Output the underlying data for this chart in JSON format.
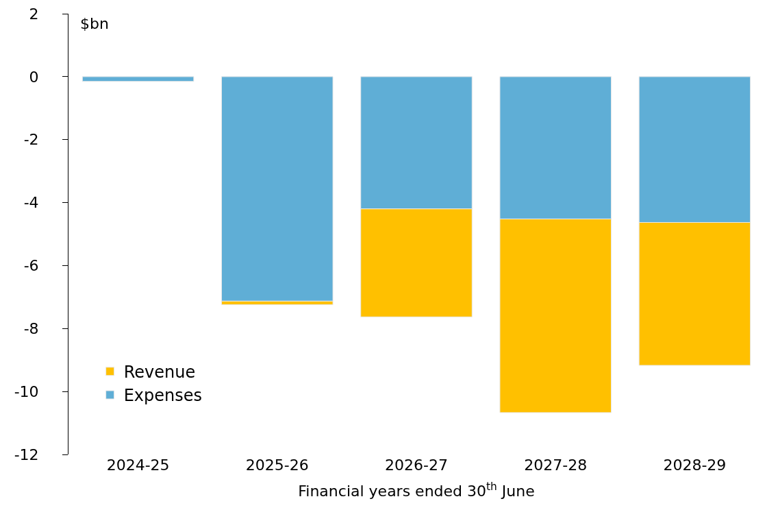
{
  "chart_data": {
    "type": "bar",
    "stacked": true,
    "xlabel": "Financial years ended 30$^{th}$ June",
    "ylabel": "$bn",
    "categories": [
      "2024-25",
      "2025-26",
      "2026-27",
      "2027-28",
      "2028-29"
    ],
    "series": [
      {
        "name": "Expenses",
        "color": "#5faed6",
        "values": [
          -0.15,
          -7.13,
          -4.2,
          -4.52,
          -4.63
        ]
      },
      {
        "name": "Revenue",
        "color": "#ffc000",
        "values": [
          null,
          -0.11,
          -3.43,
          -6.15,
          -4.54
        ]
      }
    ],
    "ylim": [
      -12,
      2
    ],
    "yticks": [
      -12,
      -10,
      -8,
      -6,
      -4,
      -2,
      0,
      2
    ],
    "grid": false,
    "legend": "bottom left"
  }
}
